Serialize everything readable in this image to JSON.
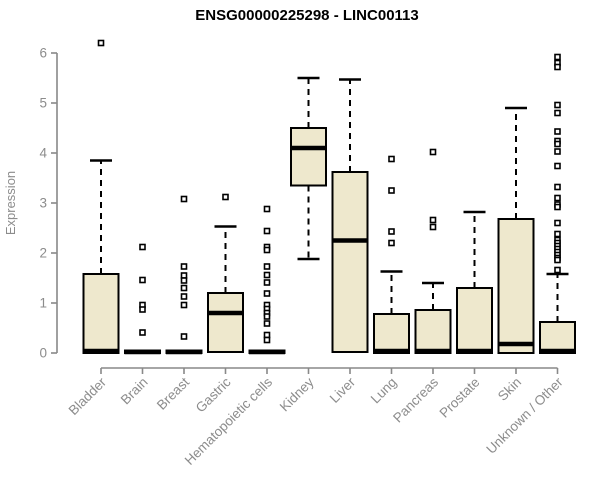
{
  "colors": {
    "background": "#ffffff",
    "box_fill": "#EEE8CD",
    "box_border": "#000000",
    "median": "#000000",
    "axis": "#898989",
    "tick_text": "#8c8c8c",
    "title_text": "#000000"
  },
  "chart_data": {
    "type": "boxplot",
    "title": "ENSG00000225298 - LINC00113",
    "xlabel": "",
    "ylabel": "Expression",
    "ylim": [
      0,
      6.3
    ],
    "yticks": [
      6,
      5,
      4,
      3,
      2,
      1,
      0
    ],
    "grid": false,
    "legend": "none",
    "categories": [
      "Bladder",
      "Brain",
      "Breast",
      "Gastric",
      "Hematopoietic cells",
      "Kidney",
      "Liver",
      "Lung",
      "Pancreas",
      "Prostate",
      "Skin",
      "Unknown / Other"
    ],
    "boxes": [
      {
        "label": "Bladder",
        "q1": 0,
        "median": 0.04,
        "q3": 1.58,
        "whisker_low": 0,
        "whisker_high": 3.85,
        "outliers": [
          6.2
        ]
      },
      {
        "label": "Brain",
        "q1": 0,
        "median": 0.02,
        "q3": 0.05,
        "whisker_low": 0,
        "whisker_high": 0.05,
        "outliers": [
          2.12,
          1.46,
          0.96,
          0.87,
          0.41
        ]
      },
      {
        "label": "Breast",
        "q1": 0,
        "median": 0.02,
        "q3": 0.05,
        "whisker_low": 0,
        "whisker_high": 0.05,
        "outliers": [
          3.08,
          1.73,
          1.55,
          1.45,
          1.3,
          1.13,
          0.96,
          0.33
        ]
      },
      {
        "label": "Gastric",
        "q1": 0.02,
        "median": 0.8,
        "q3": 1.2,
        "whisker_low": 0.02,
        "whisker_high": 2.53,
        "outliers": [
          3.12
        ]
      },
      {
        "label": "Hematopoietic cells",
        "q1": 0,
        "median": 0.02,
        "q3": 0.05,
        "whisker_low": 0,
        "whisker_high": 0.05,
        "outliers": [
          2.88,
          2.44,
          2.12,
          2.06,
          1.73,
          1.56,
          1.41,
          1.19,
          0.96,
          0.88,
          0.8,
          0.73,
          0.59,
          0.36,
          0.26
        ]
      },
      {
        "label": "Kidney",
        "q1": 3.35,
        "median": 4.1,
        "q3": 4.5,
        "whisker_low": 1.88,
        "whisker_high": 5.5,
        "outliers": []
      },
      {
        "label": "Liver",
        "q1": 0.02,
        "median": 2.25,
        "q3": 3.62,
        "whisker_low": 0.02,
        "whisker_high": 5.47,
        "outliers": []
      },
      {
        "label": "Lung",
        "q1": 0,
        "median": 0.04,
        "q3": 0.78,
        "whisker_low": 0,
        "whisker_high": 1.63,
        "outliers": [
          3.88,
          3.25,
          2.43,
          2.2
        ]
      },
      {
        "label": "Pancreas",
        "q1": 0,
        "median": 0.04,
        "q3": 0.86,
        "whisker_low": 0,
        "whisker_high": 1.4,
        "outliers": [
          4.02,
          2.66,
          2.52
        ]
      },
      {
        "label": "Prostate",
        "q1": 0,
        "median": 0.04,
        "q3": 1.3,
        "whisker_low": 0,
        "whisker_high": 2.82,
        "outliers": []
      },
      {
        "label": "Skin",
        "q1": 0,
        "median": 0.18,
        "q3": 2.68,
        "whisker_low": 0,
        "whisker_high": 4.9,
        "outliers": []
      },
      {
        "label": "Unknown / Other",
        "q1": 0,
        "median": 0.04,
        "q3": 0.62,
        "whisker_low": 0,
        "whisker_high": 1.58,
        "outliers": [
          5.92,
          5.8,
          5.72,
          4.96,
          4.8,
          4.43,
          4.24,
          4.18,
          4.03,
          3.74,
          3.32,
          3.1,
          2.97,
          2.92,
          2.6,
          2.38,
          2.26,
          2.2,
          2.14,
          2.08,
          2.02,
          1.96,
          1.9,
          1.86,
          1.66
        ]
      }
    ]
  }
}
